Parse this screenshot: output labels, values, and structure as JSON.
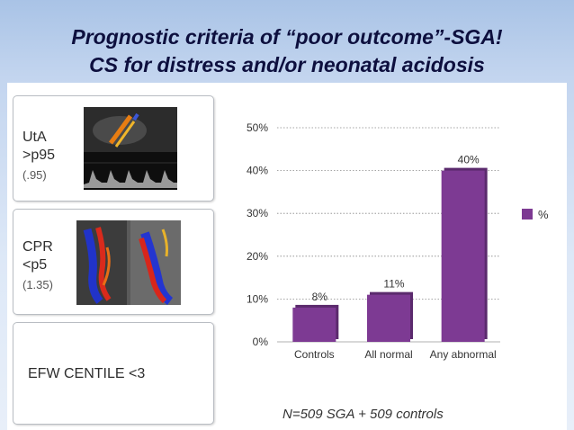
{
  "slide": {
    "title_line1": "Prognostic criteria of “poor outcome”-SGA!",
    "title_line2": "CS for distress and/or neonatal acidosis",
    "footnote": "N=509 SGA + 509 controls"
  },
  "cards": [
    {
      "label1": "UtA",
      "label2": ">p95",
      "value": "(.95)",
      "image": "doppler-waveform-image"
    },
    {
      "label1": "CPR",
      "label2": "<p5",
      "value": "(1.35)",
      "image": "color-doppler-image"
    },
    {
      "label1": "EFW CENTILE <3"
    }
  ],
  "chart_data": {
    "type": "bar",
    "categories": [
      "Controls",
      "All normal",
      "Any abnormal"
    ],
    "values": [
      8,
      11,
      40
    ],
    "data_labels": [
      "8%",
      "11%",
      "40%"
    ],
    "ylim": [
      0,
      50
    ],
    "yticks": [
      0,
      10,
      20,
      30,
      40,
      50
    ],
    "ytick_labels": [
      "0%",
      "10%",
      "20%",
      "30%",
      "40%",
      "50%"
    ],
    "legend": [
      "%"
    ],
    "legend_position": "right",
    "grid": true,
    "bar_color": "#7d3a93"
  }
}
